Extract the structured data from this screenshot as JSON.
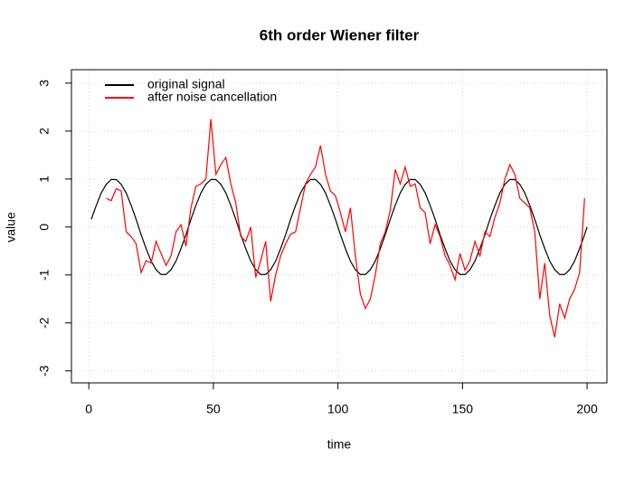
{
  "chart_data": {
    "type": "line",
    "title": "6th order Wiener filter",
    "xlabel": "time",
    "ylabel": "value",
    "xlim": [
      -6.96,
      207.96
    ],
    "ylim": [
      -3.25,
      3.28
    ],
    "xticks": [
      0,
      50,
      100,
      150,
      200
    ],
    "yticks": [
      -3,
      -2,
      -1,
      0,
      1,
      2,
      3
    ],
    "grid": true,
    "legend": "top-left",
    "series": [
      {
        "name": "original signal",
        "color": "#000000",
        "x": [
          1,
          3,
          5,
          7,
          9,
          11,
          13,
          15,
          17,
          19,
          21,
          23,
          25,
          27,
          29,
          31,
          33,
          35,
          37,
          39,
          41,
          43,
          45,
          47,
          49,
          51,
          53,
          55,
          57,
          59,
          61,
          63,
          65,
          67,
          69,
          71,
          73,
          75,
          77,
          79,
          81,
          83,
          85,
          87,
          89,
          91,
          93,
          95,
          97,
          99,
          101,
          103,
          105,
          107,
          109,
          111,
          113,
          115,
          117,
          119,
          121,
          123,
          125,
          127,
          129,
          131,
          133,
          135,
          137,
          139,
          141,
          143,
          145,
          147,
          149,
          151,
          153,
          155,
          157,
          159,
          161,
          163,
          165,
          167,
          169,
          171,
          173,
          175,
          177,
          179,
          181,
          183,
          185,
          187,
          189,
          191,
          193,
          195,
          197,
          199,
          200
        ],
        "values": [
          0.16,
          0.45,
          0.71,
          0.89,
          0.99,
          0.99,
          0.89,
          0.71,
          0.45,
          0.16,
          -0.16,
          -0.45,
          -0.71,
          -0.89,
          -0.99,
          -0.99,
          -0.89,
          -0.71,
          -0.45,
          -0.16,
          0.16,
          0.45,
          0.71,
          0.89,
          0.99,
          0.99,
          0.89,
          0.71,
          0.45,
          0.16,
          -0.16,
          -0.45,
          -0.71,
          -0.89,
          -0.99,
          -0.99,
          -0.89,
          -0.71,
          -0.45,
          -0.16,
          0.16,
          0.45,
          0.71,
          0.89,
          0.99,
          0.99,
          0.89,
          0.71,
          0.45,
          0.16,
          -0.16,
          -0.45,
          -0.71,
          -0.89,
          -0.99,
          -0.99,
          -0.89,
          -0.71,
          -0.45,
          -0.16,
          0.16,
          0.45,
          0.71,
          0.89,
          0.99,
          0.99,
          0.89,
          0.71,
          0.45,
          0.16,
          -0.16,
          -0.45,
          -0.71,
          -0.89,
          -0.99,
          -0.99,
          -0.89,
          -0.71,
          -0.45,
          -0.16,
          0.16,
          0.45,
          0.71,
          0.89,
          0.99,
          0.99,
          0.89,
          0.71,
          0.45,
          0.16,
          -0.16,
          -0.45,
          -0.71,
          -0.89,
          -0.99,
          -0.99,
          -0.89,
          -0.71,
          -0.45,
          -0.16,
          0
        ]
      },
      {
        "name": "after noise cancellation",
        "color": "#ff0000",
        "x": [
          7,
          9,
          11,
          13,
          15,
          17,
          19,
          21,
          23,
          25,
          27,
          29,
          31,
          33,
          35,
          37,
          39,
          41,
          43,
          45,
          47,
          49,
          51,
          53,
          55,
          57,
          59,
          61,
          63,
          65,
          67,
          69,
          71,
          73,
          75,
          77,
          79,
          81,
          83,
          85,
          87,
          89,
          91,
          93,
          95,
          97,
          99,
          101,
          103,
          105,
          107,
          109,
          111,
          113,
          115,
          117,
          119,
          121,
          123,
          125,
          127,
          129,
          131,
          133,
          135,
          137,
          139,
          141,
          143,
          145,
          147,
          149,
          151,
          153,
          155,
          157,
          159,
          161,
          163,
          165,
          167,
          169,
          171,
          173,
          175,
          177,
          179,
          181,
          183,
          185,
          187,
          189,
          191,
          193,
          195,
          197,
          199
        ],
        "values": [
          0.6,
          0.55,
          0.8,
          0.75,
          -0.1,
          -0.2,
          -0.35,
          -0.95,
          -0.7,
          -0.75,
          -0.3,
          -0.55,
          -0.8,
          -0.6,
          -0.1,
          0.05,
          -0.4,
          0.4,
          0.85,
          0.9,
          1.0,
          2.25,
          1.1,
          1.3,
          1.45,
          0.9,
          0.5,
          -0.2,
          -0.3,
          0.0,
          -1.05,
          -0.7,
          -0.3,
          -1.55,
          -1.0,
          -0.6,
          -0.35,
          -0.15,
          -0.1,
          0.4,
          0.9,
          1.1,
          1.25,
          1.7,
          1.1,
          0.75,
          0.65,
          0.3,
          -0.1,
          0.4,
          -0.6,
          -1.4,
          -1.7,
          -1.5,
          -1.0,
          -0.35,
          -0.1,
          0.35,
          1.2,
          0.9,
          1.25,
          0.85,
          0.9,
          0.4,
          0.3,
          -0.35,
          0.05,
          -0.2,
          -0.6,
          -0.8,
          -1.1,
          -0.55,
          -0.9,
          -0.7,
          -0.3,
          -0.6,
          -0.1,
          -0.2,
          0.2,
          0.5,
          1.0,
          1.3,
          1.1,
          0.6,
          0.5,
          0.4,
          -0.1,
          -1.5,
          -0.75,
          -1.85,
          -2.3,
          -1.6,
          -1.9,
          -1.5,
          -1.3,
          -0.95,
          0.6
        ]
      }
    ]
  }
}
